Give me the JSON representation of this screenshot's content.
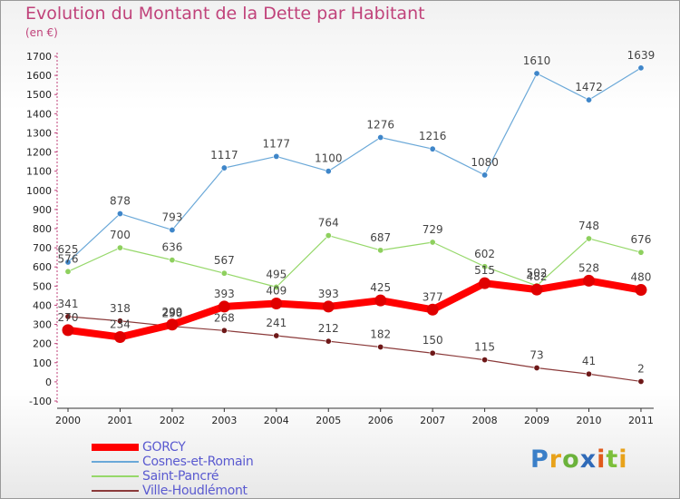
{
  "title": "Evolution du Montant de la Dette par Habitant",
  "subtitle": "(en €)",
  "logo": {
    "text": "Proxiti",
    "colors": [
      "#3a7fc8",
      "#e8a21a",
      "#6bb23b",
      "#2f6ab8",
      "#e05a1b",
      "#7cbf3a",
      "#e8a21a"
    ]
  },
  "chart_data": {
    "type": "line",
    "title": "Evolution du Montant de la Dette par Habitant",
    "subtitle": "(en €)",
    "xlabel": "",
    "ylabel": "",
    "x": [
      "2000",
      "2001",
      "2002",
      "2003",
      "2004",
      "2005",
      "2006",
      "2007",
      "2008",
      "2009",
      "2010",
      "2011"
    ],
    "ylim": [
      -100,
      1700
    ],
    "yticks": [
      -100,
      0,
      100,
      200,
      300,
      400,
      500,
      600,
      700,
      800,
      900,
      1000,
      1100,
      1200,
      1300,
      1400,
      1500,
      1600,
      1700
    ],
    "grid": false,
    "legend_position": "bottom-left",
    "series": [
      {
        "name": "GORCY",
        "color": "#ff0000",
        "width": 8,
        "marker_color": "#e00000",
        "values": [
          270,
          234,
          299,
          393,
          409,
          393,
          425,
          377,
          515,
          482,
          528,
          480
        ]
      },
      {
        "name": "Cosnes-et-Romain",
        "color": "#6aa8d8",
        "width": 1.2,
        "marker_color": "#3f86c9",
        "values": [
          625,
          878,
          793,
          1117,
          1177,
          1100,
          1276,
          1216,
          1080,
          1610,
          1472,
          1639
        ]
      },
      {
        "name": "Saint-Pancré",
        "color": "#96d86a",
        "width": 1.2,
        "marker_color": "#8ed05e",
        "values": [
          576,
          700,
          636,
          567,
          495,
          764,
          687,
          729,
          602,
          502,
          748,
          676
        ]
      },
      {
        "name": "Ville-Houdlémont",
        "color": "#8b3a3a",
        "width": 1.2,
        "marker_color": "#6e1818",
        "values": [
          341,
          318,
          290,
          268,
          241,
          212,
          182,
          150,
          115,
          73,
          41,
          2
        ]
      }
    ]
  }
}
